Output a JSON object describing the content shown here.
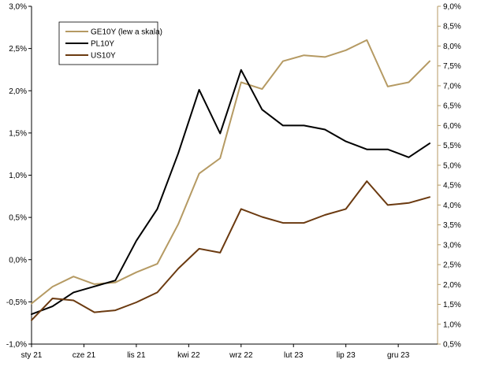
{
  "chart_data": {
    "type": "line",
    "x": [
      "2021-01",
      "2021-03",
      "2021-05",
      "2021-07",
      "2021-09",
      "2021-11",
      "2022-01",
      "2022-03",
      "2022-05",
      "2022-07",
      "2022-09",
      "2022-11",
      "2023-01",
      "2023-03",
      "2023-05",
      "2023-07",
      "2023-09",
      "2023-11",
      "2024-01",
      "2024-03"
    ],
    "x_tick_labels": [
      "sty 21",
      "cze 21",
      "lis 21",
      "kwi 22",
      "wrz 22",
      "lut 23",
      "lip 23",
      "gru 23"
    ],
    "x_tick_positions": [
      "2021-01",
      "2021-06",
      "2021-11",
      "2022-04",
      "2022-09",
      "2023-02",
      "2023-07",
      "2023-12"
    ],
    "y_left": {
      "ticks": [
        -1.0,
        -0.5,
        0.0,
        0.5,
        1.0,
        1.5,
        2.0,
        2.5,
        3.0
      ],
      "tick_labels": [
        "-1,0%",
        "-0,5%",
        "0,0%",
        "0,5%",
        "1,0%",
        "1,5%",
        "2,0%",
        "2,5%",
        "3,0%"
      ],
      "ylim": [
        -1.0,
        3.0
      ]
    },
    "y_right": {
      "ticks": [
        0.5,
        1.0,
        1.5,
        2.0,
        2.5,
        3.0,
        3.5,
        4.0,
        4.5,
        5.0,
        5.5,
        6.0,
        6.5,
        7.0,
        7.5,
        8.0,
        8.5,
        9.0
      ],
      "tick_labels": [
        "0,5%",
        "1,0%",
        "1,5%",
        "2,0%",
        "2,5%",
        "3,0%",
        "3,5%",
        "4,0%",
        "4,5%",
        "5,0%",
        "5,5%",
        "6,0%",
        "6,5%",
        "7,0%",
        "7,5%",
        "8,0%",
        "8,5%",
        "9,0%"
      ],
      "ylim": [
        0.5,
        9.0
      ]
    },
    "series": [
      {
        "name": "GE10Y (lew a skala)",
        "axis": "left",
        "color": "#B59A63",
        "values": [
          -0.52,
          -0.32,
          -0.2,
          -0.29,
          -0.27,
          -0.15,
          -0.05,
          0.42,
          1.02,
          1.2,
          2.1,
          2.02,
          2.35,
          2.42,
          2.4,
          2.48,
          2.6,
          2.05,
          2.1,
          2.35
        ]
      },
      {
        "name": "PL10Y",
        "axis": "right",
        "color": "#000000",
        "values": [
          1.25,
          1.45,
          1.8,
          1.95,
          2.1,
          3.1,
          3.9,
          5.3,
          6.9,
          5.8,
          7.4,
          6.4,
          6.0,
          6.0,
          5.9,
          5.6,
          5.4,
          5.4,
          5.2,
          5.55
        ]
      },
      {
        "name": "US10Y",
        "axis": "right",
        "color": "#6B3A10",
        "values": [
          1.1,
          1.65,
          1.6,
          1.3,
          1.35,
          1.55,
          1.8,
          2.4,
          2.9,
          2.8,
          3.9,
          3.7,
          3.55,
          3.55,
          3.75,
          3.9,
          4.6,
          4.0,
          4.05,
          4.2
        ]
      }
    ],
    "legend_position": "top-left",
    "grid": false
  }
}
